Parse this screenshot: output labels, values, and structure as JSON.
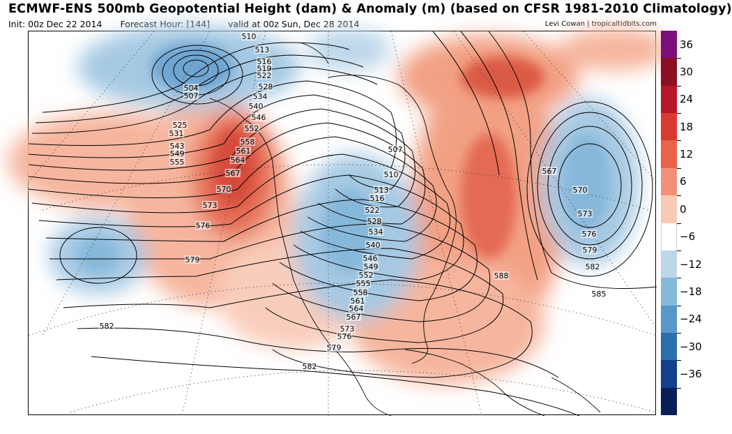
{
  "header": {
    "title": "ECMWF-ENS 500mb Geopotential Height (dam) & Anomaly (m) (based on CFSR 1981-2010 Climatology)",
    "init": "Init: 00z Dec 22 2014",
    "forecast_hour": "Forecast Hour: [144]",
    "valid": "valid at 00z Sun, Dec 28 2014",
    "credit": "Levi Cowan | tropicaltidbits.com"
  },
  "colorbar": {
    "labels": [
      "36",
      "30",
      "24",
      "18",
      "12",
      "6",
      "0",
      "−6",
      "−12",
      "−18",
      "−24",
      "−30",
      "−36"
    ],
    "colors": [
      "#7b0f7a",
      "#8b0f22",
      "#b7162a",
      "#d93b33",
      "#e8634a",
      "#f2917b",
      "#f9c9b6",
      "#ffffff",
      "#bcd7ea",
      "#86b8da",
      "#5898c8",
      "#2d6eac",
      "#133f8b",
      "#0a1f57"
    ]
  },
  "contours": [
    {
      "label": "504",
      "pos": [
        273,
        125
      ]
    },
    {
      "label": "507",
      "pos": [
        273,
        136
      ]
    },
    {
      "label": "510",
      "pos": [
        356,
        51
      ]
    },
    {
      "label": "513",
      "pos": [
        375,
        70
      ]
    },
    {
      "label": "516",
      "pos": [
        378,
        87
      ]
    },
    {
      "label": "519",
      "pos": [
        378,
        97
      ]
    },
    {
      "label": "522",
      "pos": [
        378,
        107
      ]
    },
    {
      "label": "528",
      "pos": [
        380,
        123
      ]
    },
    {
      "label": "534",
      "pos": [
        372,
        137
      ]
    },
    {
      "label": "540",
      "pos": [
        366,
        151
      ]
    },
    {
      "label": "546",
      "pos": [
        370,
        167
      ]
    },
    {
      "label": "552",
      "pos": [
        360,
        183
      ]
    },
    {
      "label": "558",
      "pos": [
        354,
        202
      ]
    },
    {
      "label": "561",
      "pos": [
        348,
        215
      ]
    },
    {
      "label": "564",
      "pos": [
        340,
        228
      ]
    },
    {
      "label": "567",
      "pos": [
        333,
        247
      ]
    },
    {
      "label": "570",
      "pos": [
        320,
        270
      ]
    },
    {
      "label": "573",
      "pos": [
        300,
        293
      ]
    },
    {
      "label": "576",
      "pos": [
        290,
        322
      ]
    },
    {
      "label": "579",
      "pos": [
        275,
        371
      ]
    },
    {
      "label": "582",
      "pos": [
        152,
        466
      ]
    },
    {
      "label": "582",
      "pos": [
        443,
        524
      ]
    },
    {
      "label": "525",
      "pos": [
        257,
        178
      ]
    },
    {
      "label": "531",
      "pos": [
        252,
        190
      ]
    },
    {
      "label": "543",
      "pos": [
        253,
        208
      ]
    },
    {
      "label": "549",
      "pos": [
        253,
        219
      ]
    },
    {
      "label": "555",
      "pos": [
        253,
        231
      ]
    },
    {
      "label": "507",
      "pos": [
        566,
        213
      ]
    },
    {
      "label": "510",
      "pos": [
        560,
        249
      ]
    },
    {
      "label": "513",
      "pos": [
        546,
        271
      ]
    },
    {
      "label": "516",
      "pos": [
        540,
        283
      ]
    },
    {
      "label": "522",
      "pos": [
        533,
        300
      ]
    },
    {
      "label": "528",
      "pos": [
        536,
        316
      ]
    },
    {
      "label": "534",
      "pos": [
        538,
        331
      ]
    },
    {
      "label": "540",
      "pos": [
        534,
        350
      ]
    },
    {
      "label": "546",
      "pos": [
        530,
        369
      ]
    },
    {
      "label": "549",
      "pos": [
        531,
        381
      ]
    },
    {
      "label": "552",
      "pos": [
        524,
        393
      ]
    },
    {
      "label": "555",
      "pos": [
        520,
        405
      ]
    },
    {
      "label": "558",
      "pos": [
        516,
        418
      ]
    },
    {
      "label": "561",
      "pos": [
        512,
        430
      ]
    },
    {
      "label": "564",
      "pos": [
        510,
        441
      ]
    },
    {
      "label": "567",
      "pos": [
        506,
        453
      ]
    },
    {
      "label": "573",
      "pos": [
        497,
        470
      ]
    },
    {
      "label": "576",
      "pos": [
        493,
        481
      ]
    },
    {
      "label": "579",
      "pos": [
        478,
        497
      ]
    },
    {
      "label": "567",
      "pos": [
        787,
        244
      ]
    },
    {
      "label": "570",
      "pos": [
        831,
        271
      ]
    },
    {
      "label": "573",
      "pos": [
        838,
        305
      ]
    },
    {
      "label": "576",
      "pos": [
        844,
        334
      ]
    },
    {
      "label": "579",
      "pos": [
        845,
        357
      ]
    },
    {
      "label": "582",
      "pos": [
        849,
        381
      ]
    },
    {
      "label": "585",
      "pos": [
        858,
        420
      ]
    },
    {
      "label": "588",
      "pos": [
        718,
        394
      ]
    }
  ]
}
